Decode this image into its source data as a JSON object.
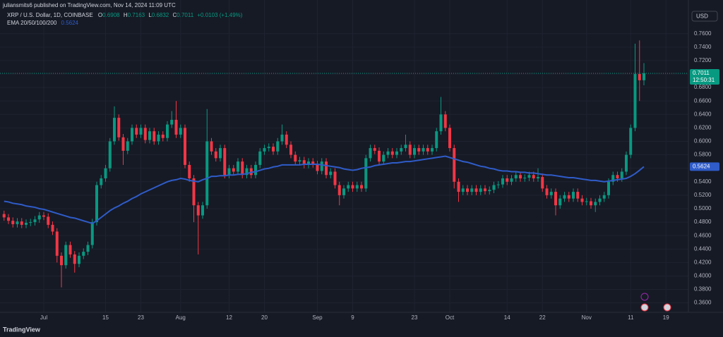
{
  "publisher": "juliansmits6 published on TradingView.com, Nov 14, 2024 11:09 UTC",
  "footer": "TradingView",
  "currency": "USD",
  "countdown": "12:50:31",
  "chart_data": {
    "type": "candlestick",
    "title": "XRP / U.S. Dollar, 1D, COINBASE",
    "ohlc_labels": {
      "open": "O",
      "high": "H",
      "low": "L",
      "close": "C"
    },
    "change": "+0.0103 (+1.49%)",
    "up_color": "#089981",
    "down_color": "#f23645",
    "grid": true,
    "categories": [
      null,
      null,
      null,
      null,
      null,
      null,
      null,
      null,
      null,
      "Jul",
      null,
      null,
      null,
      null,
      null,
      null,
      null,
      null,
      null,
      null,
      null,
      null,
      null,
      "15",
      null,
      null,
      null,
      null,
      null,
      null,
      null,
      "23",
      null,
      null,
      null,
      null,
      null,
      null,
      null,
      null,
      "Aug",
      null,
      null,
      null,
      null,
      null,
      null,
      null,
      null,
      null,
      null,
      "12",
      null,
      null,
      null,
      null,
      null,
      null,
      null,
      "20",
      null,
      null,
      null,
      null,
      null,
      null,
      null,
      null,
      null,
      null,
      null,
      "Sep",
      null,
      null,
      null,
      null,
      null,
      null,
      null,
      "9",
      null,
      null,
      null,
      null,
      null,
      null,
      null,
      null,
      null,
      null,
      null,
      null,
      null,
      "23",
      null,
      null,
      null,
      null,
      null,
      null,
      null,
      "Oct",
      null,
      null,
      null,
      null,
      null,
      null,
      null,
      null,
      null,
      null,
      null,
      null,
      "14",
      null,
      null,
      null,
      null,
      null,
      null,
      null,
      "22",
      null,
      null,
      null,
      null,
      null,
      null,
      null,
      null,
      null,
      "Nov",
      null,
      null,
      null,
      null,
      null,
      null,
      null,
      null,
      null,
      "11",
      null,
      null,
      null,
      null,
      null,
      null,
      null,
      "19",
      null,
      null,
      null,
      null,
      null
    ],
    "open": [
      0.492,
      0.487,
      0.482,
      0.477,
      0.481,
      0.476,
      0.479,
      0.48,
      0.484,
      0.49,
      0.488,
      0.476,
      0.466,
      0.43,
      0.416,
      0.446,
      0.432,
      0.418,
      0.43,
      0.436,
      0.446,
      0.48,
      0.535,
      0.545,
      0.56,
      0.6,
      0.635,
      0.606,
      0.586,
      0.6,
      0.62,
      0.61,
      0.62,
      0.602,
      0.615,
      0.6,
      0.61,
      0.605,
      0.625,
      0.632,
      0.61,
      0.62,
      0.565,
      0.545,
      0.505,
      0.49,
      0.505,
      0.6,
      0.585,
      0.575,
      0.59,
      0.55,
      0.56,
      0.555,
      0.57,
      0.55,
      0.56,
      0.55,
      0.565,
      0.585,
      0.59,
      0.592,
      0.585,
      0.6,
      0.61,
      0.595,
      0.58,
      0.57,
      0.572,
      0.565,
      0.57,
      0.566,
      0.556,
      0.57,
      0.55,
      0.555,
      0.535,
      0.52,
      0.53,
      0.535,
      0.53,
      0.535,
      0.53,
      0.575,
      0.59,
      0.586,
      0.57,
      0.58,
      0.585,
      0.58,
      0.585,
      0.59,
      0.595,
      0.58,
      0.59,
      0.585,
      0.59,
      0.585,
      0.59,
      0.615,
      0.64,
      0.62,
      0.59,
      0.54,
      0.525,
      0.53,
      0.525,
      0.53,
      0.525,
      0.53,
      0.526,
      0.528,
      0.535,
      0.536,
      0.545,
      0.54,
      0.545,
      0.55,
      0.545,
      0.546,
      0.55,
      0.545,
      0.547,
      0.53,
      0.52,
      0.525,
      0.505,
      0.515,
      0.52,
      0.515,
      0.525,
      0.515,
      0.51,
      0.511,
      0.505,
      0.51,
      0.515,
      0.52,
      0.54,
      0.55,
      0.545,
      0.555,
      0.58,
      0.62,
      0.7,
      0.6908,
      null,
      null,
      null,
      null,
      null,
      null,
      null,
      null,
      null,
      null
    ],
    "high": [
      0.497,
      0.492,
      0.487,
      0.486,
      0.486,
      0.484,
      0.485,
      0.489,
      0.495,
      0.495,
      0.493,
      0.481,
      0.471,
      0.435,
      0.451,
      0.451,
      0.437,
      0.435,
      0.441,
      0.451,
      0.485,
      0.54,
      0.55,
      0.565,
      0.605,
      0.652,
      0.64,
      0.611,
      0.605,
      0.625,
      0.625,
      0.625,
      0.625,
      0.62,
      0.62,
      0.615,
      0.615,
      0.63,
      0.645,
      0.66,
      0.625,
      0.625,
      0.57,
      0.55,
      0.51,
      0.51,
      0.648,
      0.605,
      0.59,
      0.595,
      0.595,
      0.565,
      0.565,
      0.575,
      0.575,
      0.565,
      0.565,
      0.57,
      0.59,
      0.595,
      0.597,
      0.597,
      0.605,
      0.625,
      0.615,
      0.6,
      0.585,
      0.577,
      0.577,
      0.575,
      0.575,
      0.571,
      0.575,
      0.575,
      0.56,
      0.56,
      0.54,
      0.535,
      0.54,
      0.54,
      0.54,
      0.54,
      0.58,
      0.595,
      0.595,
      0.591,
      0.585,
      0.59,
      0.59,
      0.59,
      0.595,
      0.61,
      0.6,
      0.595,
      0.595,
      0.595,
      0.595,
      0.595,
      0.62,
      0.666,
      0.645,
      0.625,
      0.595,
      0.545,
      0.535,
      0.535,
      0.535,
      0.535,
      0.535,
      0.535,
      0.533,
      0.54,
      0.541,
      0.55,
      0.55,
      0.55,
      0.555,
      0.555,
      0.551,
      0.555,
      0.555,
      0.56,
      0.552,
      0.535,
      0.53,
      0.53,
      0.52,
      0.525,
      0.525,
      0.53,
      0.53,
      0.52,
      0.516,
      0.516,
      0.515,
      0.52,
      0.525,
      0.545,
      0.555,
      0.555,
      0.56,
      0.585,
      0.625,
      0.745,
      0.75,
      0.7163,
      null,
      null,
      null,
      null,
      null,
      null,
      null,
      null,
      null,
      null
    ],
    "low": [
      0.482,
      0.477,
      0.472,
      0.472,
      0.471,
      0.471,
      0.474,
      0.475,
      0.479,
      0.483,
      0.471,
      0.461,
      0.42,
      0.383,
      0.411,
      0.427,
      0.405,
      0.413,
      0.425,
      0.431,
      0.441,
      0.475,
      0.53,
      0.54,
      0.555,
      0.595,
      0.601,
      0.565,
      0.581,
      0.595,
      0.605,
      0.605,
      0.597,
      0.597,
      0.595,
      0.595,
      0.6,
      0.6,
      0.62,
      0.605,
      0.605,
      0.56,
      0.54,
      0.48,
      0.432,
      0.485,
      0.5,
      0.58,
      0.57,
      0.57,
      0.545,
      0.545,
      0.55,
      0.55,
      0.545,
      0.545,
      0.545,
      0.545,
      0.56,
      0.58,
      0.585,
      0.58,
      0.58,
      0.595,
      0.59,
      0.575,
      0.565,
      0.565,
      0.56,
      0.56,
      0.561,
      0.551,
      0.551,
      0.545,
      0.545,
      0.53,
      0.505,
      0.515,
      0.525,
      0.525,
      0.525,
      0.525,
      0.525,
      0.57,
      0.581,
      0.565,
      0.565,
      0.575,
      0.575,
      0.575,
      0.58,
      0.585,
      0.575,
      0.575,
      0.58,
      0.58,
      0.58,
      0.58,
      0.585,
      0.61,
      0.615,
      0.585,
      0.53,
      0.51,
      0.52,
      0.52,
      0.52,
      0.52,
      0.52,
      0.521,
      0.521,
      0.523,
      0.53,
      0.531,
      0.535,
      0.535,
      0.54,
      0.54,
      0.54,
      0.541,
      0.54,
      0.54,
      0.525,
      0.515,
      0.515,
      0.49,
      0.5,
      0.51,
      0.51,
      0.51,
      0.51,
      0.505,
      0.505,
      0.5,
      0.495,
      0.505,
      0.51,
      0.515,
      0.535,
      0.54,
      0.54,
      0.55,
      0.575,
      0.615,
      0.66,
      0.6832,
      null,
      null,
      null,
      null,
      null,
      null,
      null,
      null,
      null,
      null
    ],
    "close": [
      0.487,
      0.482,
      0.477,
      0.481,
      0.476,
      0.479,
      0.48,
      0.484,
      0.49,
      0.488,
      0.476,
      0.466,
      0.43,
      0.416,
      0.446,
      0.432,
      0.418,
      0.43,
      0.436,
      0.446,
      0.48,
      0.535,
      0.545,
      0.56,
      0.6,
      0.635,
      0.606,
      0.586,
      0.6,
      0.62,
      0.61,
      0.62,
      0.602,
      0.615,
      0.6,
      0.61,
      0.605,
      0.625,
      0.632,
      0.61,
      0.62,
      0.565,
      0.545,
      0.505,
      0.49,
      0.505,
      0.6,
      0.585,
      0.575,
      0.59,
      0.55,
      0.56,
      0.555,
      0.57,
      0.55,
      0.56,
      0.55,
      0.565,
      0.585,
      0.59,
      0.592,
      0.585,
      0.6,
      0.61,
      0.595,
      0.58,
      0.57,
      0.572,
      0.565,
      0.57,
      0.566,
      0.556,
      0.57,
      0.55,
      0.555,
      0.535,
      0.52,
      0.53,
      0.535,
      0.53,
      0.535,
      0.53,
      0.575,
      0.59,
      0.586,
      0.57,
      0.58,
      0.585,
      0.58,
      0.585,
      0.59,
      0.595,
      0.58,
      0.59,
      0.585,
      0.59,
      0.585,
      0.59,
      0.615,
      0.64,
      0.62,
      0.59,
      0.54,
      0.525,
      0.53,
      0.525,
      0.53,
      0.525,
      0.53,
      0.526,
      0.528,
      0.535,
      0.536,
      0.545,
      0.54,
      0.545,
      0.55,
      0.545,
      0.546,
      0.55,
      0.545,
      0.547,
      0.53,
      0.52,
      0.525,
      0.505,
      0.515,
      0.52,
      0.515,
      0.525,
      0.515,
      0.51,
      0.511,
      0.505,
      0.51,
      0.515,
      0.52,
      0.54,
      0.55,
      0.545,
      0.555,
      0.58,
      0.62,
      0.7,
      0.6908,
      0.7011,
      null,
      null,
      null,
      null,
      null,
      null,
      null,
      null,
      null,
      null
    ],
    "series": [
      {
        "name": "EMA 20/50/100/200",
        "color": "#2f5cc9",
        "values": [
          0.511,
          0.51,
          0.508,
          0.507,
          0.506,
          0.504,
          0.503,
          0.502,
          0.5,
          0.499,
          0.497,
          0.495,
          0.493,
          0.491,
          0.489,
          0.487,
          0.486,
          0.484,
          0.482,
          0.48,
          0.478,
          0.482,
          0.487,
          0.492,
          0.497,
          0.501,
          0.504,
          0.508,
          0.511,
          0.515,
          0.518,
          0.522,
          0.525,
          0.528,
          0.531,
          0.534,
          0.537,
          0.54,
          0.542,
          0.543,
          0.545,
          0.544,
          0.542,
          0.541,
          0.54,
          0.543,
          0.545,
          0.548,
          0.548,
          0.549,
          0.549,
          0.55,
          0.55,
          0.551,
          0.551,
          0.552,
          0.554,
          0.555,
          0.557,
          0.559,
          0.56,
          0.562,
          0.563,
          0.565,
          0.565,
          0.565,
          0.565,
          0.565,
          0.566,
          0.566,
          0.566,
          0.566,
          0.565,
          0.564,
          0.563,
          0.562,
          0.561,
          0.559,
          0.558,
          0.557,
          0.558,
          0.56,
          0.561,
          0.562,
          0.564,
          0.565,
          0.566,
          0.567,
          0.568,
          0.568,
          0.569,
          0.57,
          0.57,
          0.571,
          0.572,
          0.573,
          0.574,
          0.575,
          0.576,
          0.577,
          0.578,
          0.576,
          0.574,
          0.572,
          0.57,
          0.569,
          0.567,
          0.565,
          0.563,
          0.562,
          0.56,
          0.559,
          0.557,
          0.556,
          0.556,
          0.555,
          0.555,
          0.554,
          0.554,
          0.553,
          0.553,
          0.552,
          0.551,
          0.55,
          0.55,
          0.549,
          0.548,
          0.547,
          0.546,
          0.546,
          0.545,
          0.544,
          0.543,
          0.542,
          0.542,
          0.541,
          0.54,
          0.541,
          0.542,
          0.543,
          0.544,
          0.545,
          0.548,
          0.552,
          0.557,
          0.5624,
          null,
          null,
          null,
          null,
          null,
          null,
          null,
          null,
          null,
          null
        ]
      }
    ],
    "ylim": [
      0.346,
      0.81
    ],
    "yticks": [
      {
        "value": 0.36,
        "label": "0.3600"
      },
      {
        "value": 0.38,
        "label": "0.3800"
      },
      {
        "value": 0.4,
        "label": "0.4000"
      },
      {
        "value": 0.42,
        "label": "0.4200"
      },
      {
        "value": 0.44,
        "label": "0.4400"
      },
      {
        "value": 0.46,
        "label": "0.4600"
      },
      {
        "value": 0.48,
        "label": "0.4800"
      },
      {
        "value": 0.5,
        "label": "0.5000"
      },
      {
        "value": 0.52,
        "label": "0.5200"
      },
      {
        "value": 0.54,
        "label": "0.5400"
      },
      {
        "value": 0.56,
        "label": "0.5600"
      },
      {
        "value": 0.58,
        "label": "0.5800"
      },
      {
        "value": 0.6,
        "label": "0.6000"
      },
      {
        "value": 0.62,
        "label": "0.6200"
      },
      {
        "value": 0.64,
        "label": "0.6400"
      },
      {
        "value": 0.66,
        "label": "0.6600"
      },
      {
        "value": 0.68,
        "label": "0.6800"
      },
      {
        "value": 0.7,
        "label": "0.7000"
      },
      {
        "value": 0.72,
        "label": "0.7200"
      },
      {
        "value": 0.74,
        "label": "0.7400"
      },
      {
        "value": 0.76,
        "label": "0.7600"
      }
    ]
  }
}
